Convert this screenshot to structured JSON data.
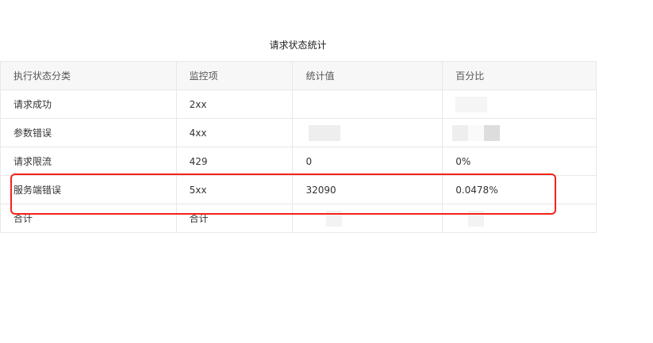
{
  "title": "请求状态统计",
  "headers": [
    "执行状态分类",
    "监控项",
    "统计值",
    "百分比"
  ],
  "rows": [
    {
      "category": "请求成功",
      "item": "2xx",
      "value": "",
      "percent": ""
    },
    {
      "category": "参数错误",
      "item": "4xx",
      "value": "",
      "percent": ""
    },
    {
      "category": "请求限流",
      "item": "429",
      "value": "0",
      "percent": "0%"
    },
    {
      "category": "服务端错误",
      "item": "5xx",
      "value": "32090",
      "percent": "0.0478%"
    },
    {
      "category": "合计",
      "item": "合计",
      "value": "",
      "percent": ""
    }
  ],
  "highlight_color": "#f5221b"
}
